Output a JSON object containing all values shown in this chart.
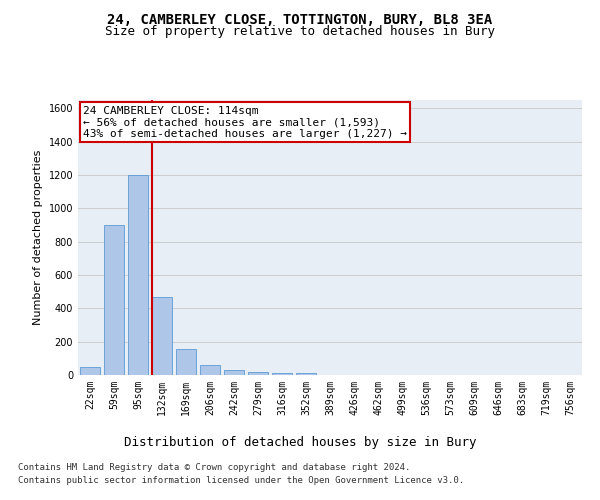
{
  "title1": "24, CAMBERLEY CLOSE, TOTTINGTON, BURY, BL8 3EA",
  "title2": "Size of property relative to detached houses in Bury",
  "xlabel": "Distribution of detached houses by size in Bury",
  "ylabel": "Number of detached properties",
  "categories": [
    "22sqm",
    "59sqm",
    "95sqm",
    "132sqm",
    "169sqm",
    "206sqm",
    "242sqm",
    "279sqm",
    "316sqm",
    "352sqm",
    "389sqm",
    "426sqm",
    "462sqm",
    "499sqm",
    "536sqm",
    "573sqm",
    "609sqm",
    "646sqm",
    "683sqm",
    "719sqm",
    "756sqm"
  ],
  "values": [
    50,
    900,
    1200,
    470,
    155,
    60,
    30,
    20,
    15,
    15,
    0,
    0,
    0,
    0,
    0,
    0,
    0,
    0,
    0,
    0,
    0
  ],
  "bar_color": "#aec6e8",
  "bar_edge_color": "#5b9bd5",
  "vline_color": "#cc0000",
  "vline_x": 2.58,
  "annotation_text": "24 CAMBERLEY CLOSE: 114sqm\n← 56% of detached houses are smaller (1,593)\n43% of semi-detached houses are larger (1,227) →",
  "annotation_box_color": "#ffffff",
  "annotation_box_edge_color": "#cc0000",
  "ylim": [
    0,
    1650
  ],
  "yticks": [
    0,
    200,
    400,
    600,
    800,
    1000,
    1200,
    1400,
    1600
  ],
  "grid_color": "#cccccc",
  "bg_color": "#e8eef5",
  "footer1": "Contains HM Land Registry data © Crown copyright and database right 2024.",
  "footer2": "Contains public sector information licensed under the Open Government Licence v3.0.",
  "title_fontsize": 10,
  "subtitle_fontsize": 9,
  "xlabel_fontsize": 9,
  "ylabel_fontsize": 8,
  "tick_fontsize": 7,
  "annotation_fontsize": 8,
  "footer_fontsize": 6.5
}
